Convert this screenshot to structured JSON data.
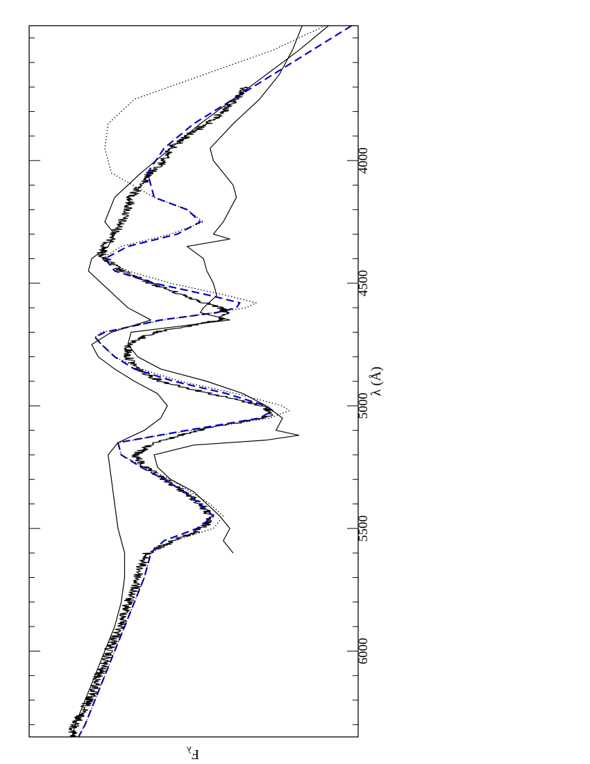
{
  "chart_data": {
    "type": "line",
    "orientation": "rotated 90 degrees clockwise (wavelength increases downward, flux increases to the left)",
    "xlabel": "λ (Å)",
    "ylabel": "F",
    "ylabel_subscript": "λ",
    "xlim": [
      3450,
      6350
    ],
    "ylim": [
      0,
      1
    ],
    "y_tick_labels": "none",
    "x_ticks": [
      4000,
      4500,
      5000,
      5500,
      6000
    ],
    "x_tick_labels": [
      "4000",
      "4500",
      "5000",
      "5500",
      "6000"
    ],
    "minor_tick_step": 100,
    "grid": false,
    "legend": "none",
    "series": [
      {
        "style": "solid-noisy",
        "color": "#000000",
        "noise": 0.015,
        "x": [
          3700,
          3750,
          3800,
          3850,
          3900,
          3950,
          4000,
          4050,
          4100,
          4150,
          4200,
          4250,
          4300,
          4350,
          4380,
          4400,
          4450,
          4500,
          4550,
          4600,
          4620,
          4650,
          4700,
          4750,
          4800,
          4850,
          4900,
          4950,
          5000,
          5030,
          5050,
          5100,
          5150,
          5200,
          5250,
          5300,
          5350,
          5400,
          5450,
          5500,
          5550,
          5600,
          5650,
          5700,
          5750,
          5800,
          5850,
          5900,
          5950,
          6000,
          6050,
          6100,
          6150,
          6200,
          6250,
          6300,
          6350
        ],
        "y": [
          0.34,
          0.37,
          0.41,
          0.46,
          0.52,
          0.57,
          0.59,
          0.63,
          0.66,
          0.69,
          0.7,
          0.72,
          0.74,
          0.77,
          0.78,
          0.77,
          0.72,
          0.63,
          0.53,
          0.42,
          0.4,
          0.42,
          0.62,
          0.7,
          0.7,
          0.67,
          0.6,
          0.45,
          0.29,
          0.26,
          0.29,
          0.49,
          0.62,
          0.68,
          0.65,
          0.59,
          0.53,
          0.48,
          0.45,
          0.47,
          0.56,
          0.64,
          0.66,
          0.67,
          0.68,
          0.7,
          0.71,
          0.72,
          0.74,
          0.76,
          0.77,
          0.79,
          0.8,
          0.82,
          0.84,
          0.86,
          0.87
        ]
      },
      {
        "style": "dashed",
        "color": "#0000cc",
        "x": [
          3450,
          3550,
          3650,
          3750,
          3850,
          3950,
          4050,
          4150,
          4200,
          4250,
          4300,
          4350,
          4400,
          4450,
          4500,
          4550,
          4580,
          4600,
          4620,
          4650,
          4700,
          4720,
          4750,
          4800,
          4850,
          4900,
          4950,
          5000,
          5020,
          5050,
          5100,
          5150,
          5200,
          5250,
          5300,
          5350,
          5400,
          5450,
          5500,
          5550,
          5600,
          5700,
          5800,
          5900,
          6000,
          6100,
          6200,
          6300,
          6350
        ],
        "y": [
          0.02,
          0.14,
          0.26,
          0.38,
          0.5,
          0.59,
          0.64,
          0.62,
          0.52,
          0.48,
          0.55,
          0.7,
          0.77,
          0.74,
          0.62,
          0.45,
          0.36,
          0.37,
          0.43,
          0.6,
          0.77,
          0.8,
          0.78,
          0.74,
          0.68,
          0.56,
          0.4,
          0.28,
          0.26,
          0.3,
          0.52,
          0.73,
          0.72,
          0.66,
          0.59,
          0.53,
          0.48,
          0.44,
          0.49,
          0.59,
          0.63,
          0.65,
          0.68,
          0.71,
          0.74,
          0.77,
          0.8,
          0.83,
          0.85
        ]
      },
      {
        "style": "dotted",
        "color": "#000000",
        "x": [
          3450,
          3550,
          3650,
          3750,
          3850,
          3950,
          4050,
          4150,
          4200,
          4250,
          4300,
          4350,
          4400,
          4450,
          4500,
          4550,
          4580,
          4600,
          4650,
          4700,
          4720,
          4750,
          4800,
          4850,
          4900,
          4950,
          5000,
          5020,
          5050,
          5100,
          5150,
          5200,
          5250,
          5300,
          5350,
          5400,
          5450,
          5500,
          5550,
          5600,
          5700,
          5800,
          5900,
          6000,
          6100,
          6200,
          6300,
          6350
        ],
        "y": [
          0.1,
          0.26,
          0.47,
          0.68,
          0.76,
          0.77,
          0.75,
          0.62,
          0.52,
          0.47,
          0.57,
          0.72,
          0.78,
          0.7,
          0.57,
          0.4,
          0.31,
          0.34,
          0.59,
          0.78,
          0.8,
          0.78,
          0.74,
          0.66,
          0.54,
          0.37,
          0.23,
          0.21,
          0.27,
          0.51,
          0.73,
          0.72,
          0.65,
          0.57,
          0.51,
          0.45,
          0.41,
          0.44,
          0.56,
          0.63,
          0.65,
          0.68,
          0.71,
          0.74,
          0.77,
          0.8,
          0.83,
          0.85
        ]
      },
      {
        "style": "solid",
        "color": "#000000",
        "x": [
          3450,
          3550,
          3650,
          3750,
          3850,
          3950,
          4050,
          4150,
          4250,
          4300,
          4350,
          4400,
          4450,
          4500,
          4550,
          4600,
          4650,
          4700,
          4750,
          4800,
          4850,
          4900,
          4950,
          5000,
          5050,
          5100,
          5150,
          5200,
          5300,
          5400,
          5500,
          5600,
          5700,
          5800,
          5900,
          6000,
          6100,
          6200,
          6300,
          6350
        ],
        "y": [
          0.09,
          0.18,
          0.28,
          0.38,
          0.48,
          0.57,
          0.66,
          0.74,
          0.77,
          0.74,
          0.76,
          0.81,
          0.82,
          0.78,
          0.74,
          0.7,
          0.63,
          0.75,
          0.81,
          0.79,
          0.74,
          0.68,
          0.61,
          0.58,
          0.6,
          0.65,
          0.73,
          0.76,
          0.75,
          0.74,
          0.73,
          0.71,
          0.71,
          0.72,
          0.74,
          0.77,
          0.8,
          0.83,
          0.86,
          0.87
        ]
      },
      {
        "style": "solid",
        "color": "#000000",
        "x": [
          3450,
          3550,
          3650,
          3750,
          3850,
          3950,
          4000,
          4050,
          4100,
          4150,
          4200,
          4250,
          4300,
          4320,
          4350,
          4400,
          4450,
          4500,
          4550,
          4600,
          4620,
          4650,
          4700,
          4750,
          4800,
          4850,
          4900,
          4950,
          5000,
          5050,
          5100,
          5120,
          5140,
          5160,
          5200,
          5250,
          5300,
          5350,
          5400,
          5450,
          5500,
          5550,
          5600
        ],
        "y": [
          0.17,
          0.2,
          0.24,
          0.3,
          0.38,
          0.45,
          0.44,
          0.41,
          0.38,
          0.37,
          0.39,
          0.41,
          0.44,
          0.39,
          0.52,
          0.47,
          0.46,
          0.44,
          0.43,
          0.47,
          0.48,
          0.39,
          0.69,
          0.7,
          0.67,
          0.6,
          0.46,
          0.35,
          0.28,
          0.23,
          0.25,
          0.18,
          0.28,
          0.5,
          0.62,
          0.61,
          0.57,
          0.5,
          0.46,
          0.42,
          0.39,
          0.41,
          0.38
        ]
      }
    ]
  }
}
